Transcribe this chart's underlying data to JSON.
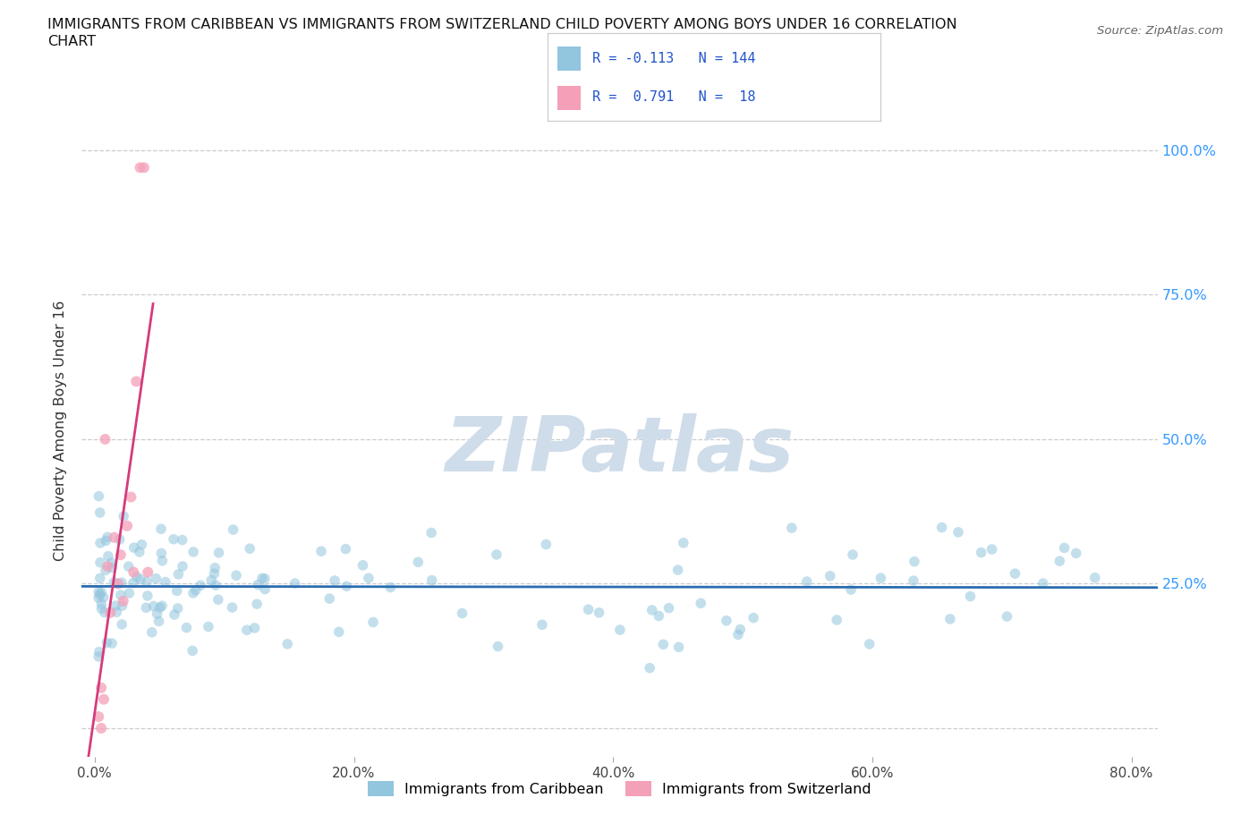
{
  "title_line1": "IMMIGRANTS FROM CARIBBEAN VS IMMIGRANTS FROM SWITZERLAND CHILD POVERTY AMONG BOYS UNDER 16 CORRELATION",
  "title_line2": "CHART",
  "source_text": "Source: ZipAtlas.com",
  "ylabel": "Child Poverty Among Boys Under 16",
  "xtick_labels": [
    "0.0%",
    "20.0%",
    "40.0%",
    "60.0%",
    "80.0%"
  ],
  "xtick_vals": [
    0,
    20,
    40,
    60,
    80
  ],
  "ytick_vals": [
    0,
    25,
    50,
    75,
    100
  ],
  "ytick_labels_right": [
    "",
    "25.0%",
    "50.0%",
    "75.0%",
    "100.0%"
  ],
  "ylim": [
    -5,
    108
  ],
  "xlim": [
    -1,
    82
  ],
  "r_caribbean": -0.113,
  "n_caribbean": 144,
  "r_switzerland": 0.791,
  "n_switzerland": 18,
  "color_caribbean": "#92c5de",
  "color_switzerland": "#f4a0b8",
  "trendline_caribbean_color": "#2b6cb0",
  "trendline_switzerland_color": "#d63b7a",
  "legend_label_caribbean": "Immigrants from Caribbean",
  "legend_label_switzerland": "Immigrants from Switzerland",
  "watermark": "ZIPatlas",
  "watermark_color": "#cfdcea",
  "background_color": "#ffffff",
  "seed": 17,
  "swi_x": [
    0.3,
    0.5,
    0.5,
    0.7,
    0.8,
    1.0,
    1.2,
    1.5,
    1.8,
    2.0,
    2.2,
    2.5,
    2.8,
    3.0,
    3.2,
    3.5,
    3.8,
    4.1
  ],
  "swi_y": [
    2,
    0,
    7,
    5,
    50,
    28,
    20,
    33,
    25,
    30,
    22,
    35,
    40,
    27,
    60,
    97,
    97,
    27
  ]
}
